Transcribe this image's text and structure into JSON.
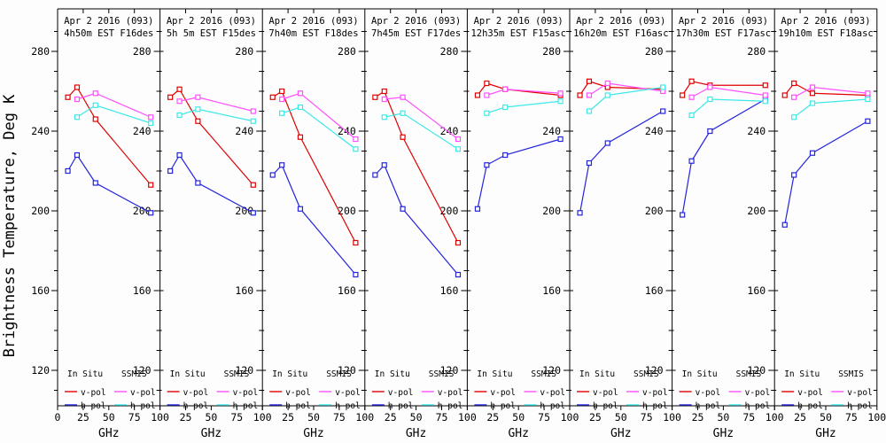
{
  "page": {
    "background": "#fdfdfd"
  },
  "chart_data": {
    "type": "line",
    "ylabel": "Brightness Temperature, Deg K",
    "xlabel": "GHz",
    "y_ticks": [
      120,
      160,
      200,
      240,
      280
    ],
    "y_minor_step": 10,
    "y_range_shown": [
      102,
      301
    ],
    "x_ticks": [
      0,
      25,
      50,
      75,
      100
    ],
    "xlim": [
      0,
      100
    ],
    "grid": false,
    "legend": {
      "col1_header": "In Situ",
      "col2_header": "SSMIS",
      "row1_label": "v-pol",
      "row2_label": "h-pol",
      "position": "bottom-inside-each-panel"
    },
    "colors": {
      "insitu_v": "#e00000",
      "insitu_h": "#2424dd",
      "ssmis_v": "#ff50ff",
      "ssmis_h": "#3fe8e8",
      "axis": "#000000"
    },
    "insitu_x": [
      10,
      19,
      37,
      91
    ],
    "ssmis_x": [
      19,
      37,
      91
    ],
    "panels": [
      {
        "title1": "Apr 2 2016 (093)",
        "title2": "4h50m EST F16des",
        "insitu_v": [
          257,
          262,
          246,
          213
        ],
        "insitu_h": [
          220,
          228,
          214,
          199
        ],
        "ssmis_v": [
          256,
          259,
          247
        ],
        "ssmis_h": [
          247,
          253,
          244
        ]
      },
      {
        "title1": "Apr 2 2016 (093)",
        "title2": "5h 5m EST F15des",
        "insitu_v": [
          257,
          261,
          245,
          213
        ],
        "insitu_h": [
          220,
          228,
          214,
          199
        ],
        "ssmis_v": [
          255,
          257,
          250
        ],
        "ssmis_h": [
          248,
          251,
          245
        ]
      },
      {
        "title1": "Apr 2 2016 (093)",
        "title2": "7h40m EST F18des",
        "insitu_v": [
          257,
          260,
          237,
          184
        ],
        "insitu_h": [
          218,
          223,
          201,
          168
        ],
        "ssmis_v": [
          256,
          259,
          236
        ],
        "ssmis_h": [
          249,
          252,
          231
        ]
      },
      {
        "title1": "Apr 2 2016 (093)",
        "title2": "7h45m EST F17des",
        "insitu_v": [
          257,
          260,
          237,
          184
        ],
        "insitu_h": [
          218,
          223,
          201,
          168
        ],
        "ssmis_v": [
          256,
          257,
          236
        ],
        "ssmis_h": [
          247,
          249,
          231
        ]
      },
      {
        "title1": "Apr 2 2016 (093)",
        "title2": "12h35m EST F15asc",
        "insitu_v": [
          258,
          264,
          261,
          258
        ],
        "insitu_h": [
          201,
          223,
          228,
          236
        ],
        "ssmis_v": [
          258,
          261,
          259
        ],
        "ssmis_h": [
          249,
          252,
          255
        ]
      },
      {
        "title1": "Apr 2 2016 (093)",
        "title2": "16h20m EST F16asc",
        "insitu_v": [
          258,
          265,
          262,
          261
        ],
        "insitu_h": [
          199,
          224,
          234,
          250
        ],
        "ssmis_v": [
          258,
          264,
          260
        ],
        "ssmis_h": [
          250,
          258,
          262
        ]
      },
      {
        "title1": "Apr 2 2016 (093)",
        "title2": "17h30m EST F17asc",
        "insitu_v": [
          258,
          265,
          263,
          263
        ],
        "insitu_h": [
          198,
          225,
          240,
          256
        ],
        "ssmis_v": [
          257,
          262,
          258
        ],
        "ssmis_h": [
          248,
          256,
          255
        ]
      },
      {
        "title1": "Apr 2 2016 (093)",
        "title2": "19h10m EST F18asc",
        "insitu_v": [
          258,
          264,
          259,
          258
        ],
        "insitu_h": [
          193,
          218,
          229,
          245
        ],
        "ssmis_v": [
          257,
          262,
          259
        ],
        "ssmis_h": [
          247,
          254,
          256
        ]
      }
    ]
  }
}
